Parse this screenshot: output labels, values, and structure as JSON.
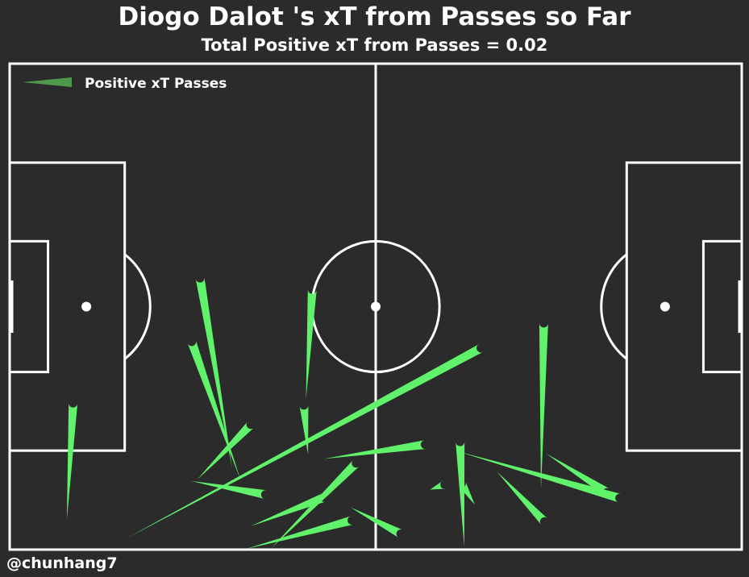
{
  "title": "Diogo Dalot 's xT from Passes so Far",
  "subtitle": "Total Positive xT from Passes = 0.02",
  "credit": "@chunhang7",
  "legend": {
    "label": "Positive xT Passes",
    "color": "#4f9a4a"
  },
  "colors": {
    "background": "#2b2b2b",
    "lines": "#ffffff",
    "pass": "#5ff26a"
  },
  "chart_data": {
    "type": "scatter",
    "pitch": {
      "length": 105,
      "width": 68
    },
    "xlim": [
      0,
      105
    ],
    "ylim": [
      0,
      68
    ],
    "series": [
      {
        "name": "Positive xT Passes",
        "passes": [
          {
            "x": 9.1,
            "y": 20.5,
            "end_x": 8.2,
            "end_y": 4.2
          },
          {
            "x": 27.3,
            "y": 38.0,
            "end_x": 31.9,
            "end_y": 11.4
          },
          {
            "x": 26.1,
            "y": 29.1,
            "end_x": 33.1,
            "end_y": 9.8
          },
          {
            "x": 34.6,
            "y": 17.5,
            "end_x": 26.9,
            "end_y": 9.8
          },
          {
            "x": 43.4,
            "y": 36.4,
            "end_x": 42.5,
            "end_y": 21.1
          },
          {
            "x": 42.2,
            "y": 20.2,
            "end_x": 42.8,
            "end_y": 13.3
          },
          {
            "x": 36.7,
            "y": 7.7,
            "end_x": 26.0,
            "end_y": 9.6
          },
          {
            "x": 67.6,
            "y": 28.2,
            "end_x": 16.8,
            "end_y": 1.6
          },
          {
            "x": 59.6,
            "y": 14.7,
            "end_x": 45.1,
            "end_y": 12.7
          },
          {
            "x": 49.7,
            "y": 12.1,
            "end_x": 37.5,
            "end_y": 0.2
          },
          {
            "x": 45.1,
            "y": 7.3,
            "end_x": 34.6,
            "end_y": 3.3
          },
          {
            "x": 49.1,
            "y": 4.1,
            "end_x": 33.9,
            "end_y": 0.1
          },
          {
            "x": 56.1,
            "y": 2.2,
            "end_x": 48.9,
            "end_y": 5.9
          },
          {
            "x": 64.6,
            "y": 15.1,
            "end_x": 65.2,
            "end_y": 0.4
          },
          {
            "x": 64.8,
            "y": 9.3,
            "end_x": 66.7,
            "end_y": 6.3
          },
          {
            "x": 62.4,
            "y": 9.1,
            "end_x": 60.3,
            "end_y": 8.4
          },
          {
            "x": 76.6,
            "y": 31.7,
            "end_x": 76.2,
            "end_y": 8.5
          },
          {
            "x": 87.5,
            "y": 7.2,
            "end_x": 64.4,
            "end_y": 13.7
          },
          {
            "x": 85.7,
            "y": 8.0,
            "end_x": 77.0,
            "end_y": 13.4
          },
          {
            "x": 76.7,
            "y": 3.9,
            "end_x": 69.9,
            "end_y": 10.9
          }
        ]
      }
    ],
    "title": "Diogo Dalot 's xT from Passes so Far",
    "subtitle": "Total Positive xT from Passes = 0.02",
    "legend_position": "top-left"
  }
}
